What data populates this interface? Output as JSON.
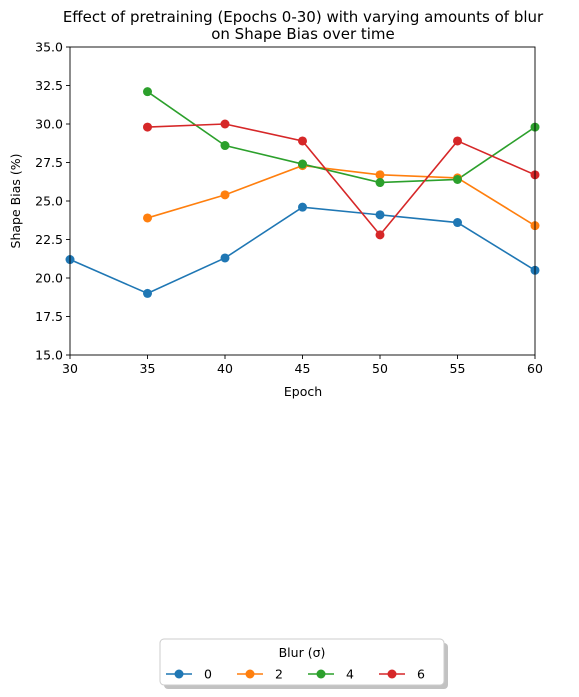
{
  "chart_data": {
    "type": "line",
    "title_lines": [
      "Effect of pretraining (Epochs 0-30) with varying amounts of blur",
      "on Shape Bias over time"
    ],
    "xlabel": "Epoch",
    "ylabel": "Shape Bias (%)",
    "xlim": [
      30,
      60
    ],
    "ylim": [
      15.0,
      35.0
    ],
    "x_ticks": [
      30,
      35,
      40,
      45,
      50,
      55,
      60
    ],
    "y_ticks": [
      15.0,
      17.5,
      20.0,
      22.5,
      25.0,
      27.5,
      30.0,
      32.5,
      35.0
    ],
    "x_tick_labels": [
      "30",
      "35",
      "40",
      "45",
      "50",
      "55",
      "60"
    ],
    "y_tick_labels": [
      "15.0",
      "17.5",
      "20.0",
      "22.5",
      "25.0",
      "27.5",
      "30.0",
      "32.5",
      "35.0"
    ],
    "grid": false,
    "legend": {
      "title": "Blur (σ)",
      "placement": "bottom-center",
      "columns": 4
    },
    "series": [
      {
        "name": "0",
        "color": "#1f77b4",
        "points": [
          [
            30,
            21.2
          ],
          [
            35,
            19.0
          ],
          [
            40,
            21.3
          ],
          [
            45,
            24.6
          ],
          [
            50,
            24.1
          ],
          [
            55,
            23.6
          ],
          [
            60,
            20.5
          ]
        ]
      },
      {
        "name": "2",
        "color": "#ff7f0e",
        "points": [
          [
            35,
            23.9
          ],
          [
            40,
            25.4
          ],
          [
            45,
            27.3
          ],
          [
            50,
            26.7
          ],
          [
            55,
            26.5
          ],
          [
            60,
            23.4
          ]
        ]
      },
      {
        "name": "4",
        "color": "#2ca02c",
        "points": [
          [
            35,
            32.1
          ],
          [
            40,
            28.6
          ],
          [
            45,
            27.4
          ],
          [
            50,
            26.2
          ],
          [
            55,
            26.4
          ],
          [
            60,
            29.8
          ]
        ]
      },
      {
        "name": "6",
        "color": "#d62728",
        "points": [
          [
            35,
            29.8
          ],
          [
            40,
            30.0
          ],
          [
            45,
            28.9
          ],
          [
            50,
            22.8
          ],
          [
            55,
            28.9
          ],
          [
            60,
            26.7
          ]
        ]
      }
    ]
  }
}
